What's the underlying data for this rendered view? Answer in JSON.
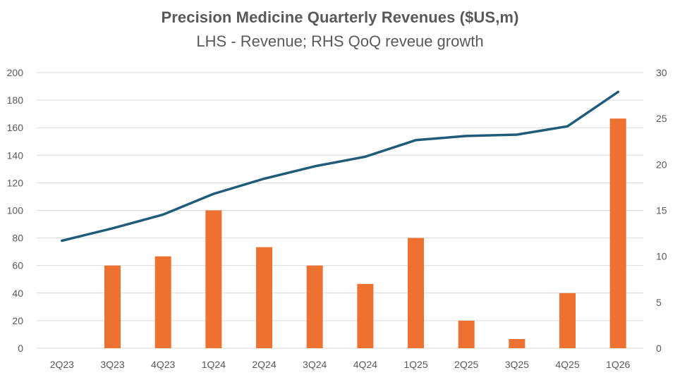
{
  "chart_data": {
    "type": "bar",
    "title": "Precision Medicine Quarterly Revenues ($US,m)",
    "subtitle": "LHS - Revenue; RHS QoQ reveue growth",
    "categories": [
      "2Q23",
      "3Q23",
      "4Q23",
      "1Q24",
      "2Q24",
      "3Q24",
      "4Q24",
      "1Q25",
      "2Q25",
      "3Q25",
      "4Q25",
      "1Q26"
    ],
    "series": [
      {
        "type": "line",
        "axis": "left",
        "values": [
          78,
          87,
          97,
          112,
          123,
          132,
          139,
          151,
          154,
          155,
          161,
          186
        ],
        "color": "#1F5C7A"
      },
      {
        "type": "bar",
        "axis": "right",
        "values": [
          0,
          9,
          10,
          15,
          11,
          9,
          7,
          12,
          3,
          1,
          6,
          25
        ],
        "color": "#ED7231"
      }
    ],
    "y_left": {
      "min": 0,
      "max": 200,
      "ticks": [
        "0",
        "20",
        "40",
        "60",
        "80",
        "100",
        "120",
        "140",
        "160",
        "180",
        "200"
      ]
    },
    "y_right": {
      "min": 0,
      "max": 30,
      "ticks": [
        "0",
        "5",
        "10",
        "15",
        "20",
        "25",
        "30"
      ]
    },
    "grid": true,
    "legend": "none"
  }
}
